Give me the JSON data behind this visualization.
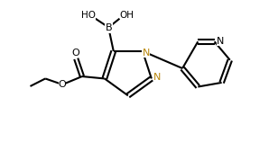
{
  "bg_color": "#ffffff",
  "line_color": "#000000",
  "n_color": "#b8860b",
  "lw": 1.5,
  "figsize": [
    3.08,
    1.58
  ],
  "dpi": 100,
  "xlim": [
    0,
    10
  ],
  "ylim": [
    0,
    5.2
  ]
}
